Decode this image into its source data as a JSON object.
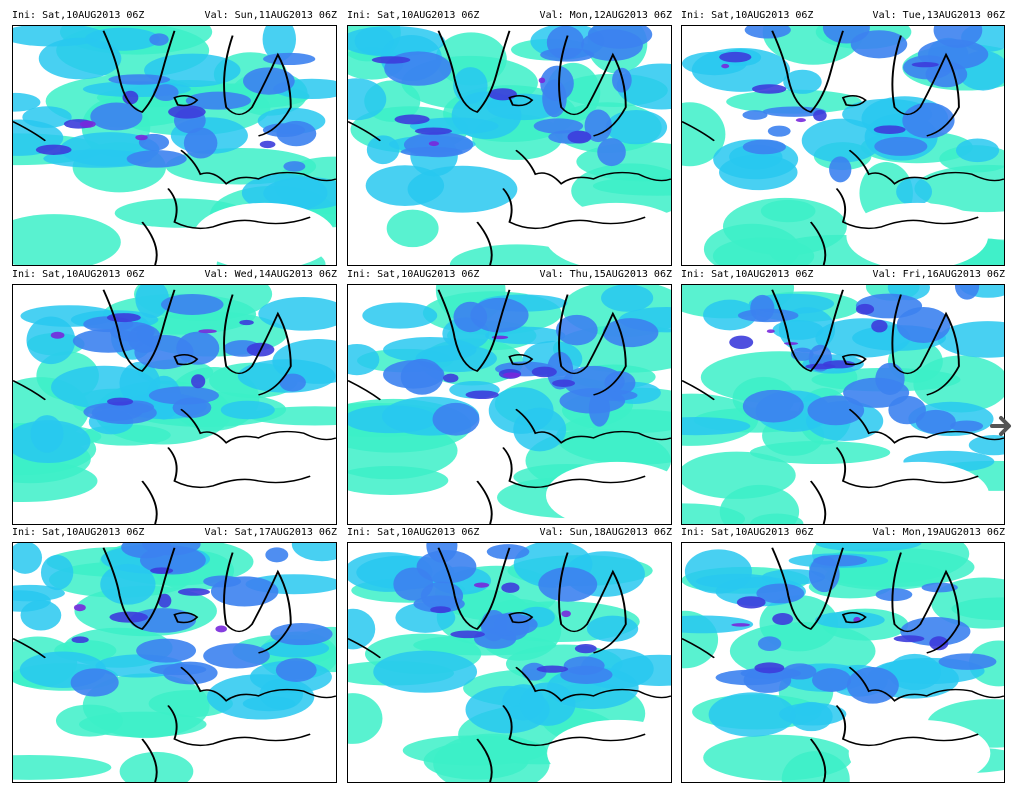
{
  "panels": [
    {
      "ini": "Ini: Sat,10AUG2013 06Z",
      "val": "Val: Sun,11AUG2013 06Z"
    },
    {
      "ini": "Ini: Sat,10AUG2013 06Z",
      "val": "Val: Mon,12AUG2013 06Z"
    },
    {
      "ini": "Ini: Sat,10AUG2013 06Z",
      "val": "Val: Tue,13AUG2013 06Z"
    },
    {
      "ini": "Ini: Sat,10AUG2013 06Z",
      "val": "Val: Wed,14AUG2013 06Z"
    },
    {
      "ini": "Ini: Sat,10AUG2013 06Z",
      "val": "Val: Thu,15AUG2013 06Z"
    },
    {
      "ini": "Ini: Sat,10AUG2013 06Z",
      "val": "Val: Fri,16AUG2013 06Z"
    },
    {
      "ini": "Ini: Sat,10AUG2013 06Z",
      "val": "Val: Sat,17AUG2013 06Z"
    },
    {
      "ini": "Ini: Sat,10AUG2013 06Z",
      "val": "Val: Sun,18AUG2013 06Z"
    },
    {
      "ini": "Ini: Sat,10AUG2013 06Z",
      "val": "Val: Mon,19AUG2013 06Z"
    }
  ],
  "colors": {
    "light": "#3cf0c8",
    "cyan": "#28c8f0",
    "blue": "#3c82f0",
    "deep": "#3c3cdc",
    "purple": "#7828dc",
    "magenta": "#dc28dc",
    "coast": "#000000"
  },
  "icons": {
    "next": "arrow-right-icon"
  }
}
